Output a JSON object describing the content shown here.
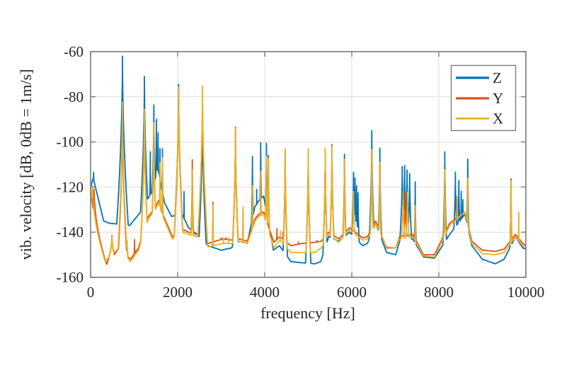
{
  "figure": {
    "background": "#ffffff",
    "frame_color": "#7b7b7b",
    "grid_color": "#dcdcdc"
  },
  "chart_data": {
    "type": "line",
    "title": "",
    "xlabel": "frequency [Hz]",
    "ylabel": "vib. velocity [dB, 0dB = 1m/s]",
    "xlim": [
      0,
      10000
    ],
    "ylim": [
      -160,
      -60
    ],
    "xticks": [
      0,
      2000,
      4000,
      6000,
      8000,
      10000
    ],
    "yticks": [
      -60,
      -80,
      -100,
      -120,
      -140,
      -160
    ],
    "grid": true,
    "legend_position": "top-right",
    "legend_labels": [
      "Z",
      "Y",
      "X"
    ],
    "peak_format": "[frequency_hz, peak_level_db, optional_width_scale]",
    "baseline_format": "[frequency_hz, level_db] piecewise-linear valley floor",
    "series": [
      {
        "name": "Z",
        "color": "#0072BD",
        "peaks": [
          [
            70,
            -113.5,
            6
          ],
          [
            732,
            -62
          ],
          [
            1236,
            -71
          ],
          [
            1372,
            -104.4
          ],
          [
            1453,
            -83.6
          ],
          [
            1513,
            -90
          ],
          [
            1551,
            -96
          ],
          [
            1594,
            -103
          ],
          [
            1650,
            -103
          ],
          [
            2022,
            -74.5
          ],
          [
            2147,
            -122
          ],
          [
            2336,
            -112.5
          ],
          [
            2570,
            -86
          ],
          [
            3328,
            -93.5
          ],
          [
            3718,
            -106.5
          ],
          [
            3815,
            -121
          ],
          [
            3908,
            -100.3
          ],
          [
            4040,
            -100.6
          ],
          [
            4085,
            -106
          ],
          [
            4470,
            -104.5
          ],
          [
            5000,
            -104
          ],
          [
            5390,
            -104
          ],
          [
            5545,
            -101.2
          ],
          [
            5832,
            -105.5
          ],
          [
            6040,
            -113.5,
            2
          ],
          [
            6075,
            -116,
            2
          ],
          [
            6110,
            -119.5,
            2
          ],
          [
            6145,
            -122.5,
            2
          ],
          [
            6460,
            -95
          ],
          [
            6646,
            -102.8
          ],
          [
            7160,
            -111,
            2
          ],
          [
            7215,
            -110.5,
            2
          ],
          [
            7270,
            -112.5,
            2
          ],
          [
            7330,
            -114,
            2
          ],
          [
            7458,
            -117.7
          ],
          [
            8137,
            -104.4
          ],
          [
            8380,
            -113.4,
            2
          ],
          [
            8460,
            -117.1,
            2
          ],
          [
            8515,
            -121.9,
            2
          ],
          [
            8553,
            -125.6,
            2
          ],
          [
            8665,
            -107.6
          ],
          [
            9657,
            -116.4
          ]
        ],
        "baseline": [
          [
            0,
            -120
          ],
          [
            60,
            -116
          ],
          [
            300,
            -135
          ],
          [
            420,
            -136
          ],
          [
            900,
            -137
          ],
          [
            1150,
            -131
          ],
          [
            1320,
            -125
          ],
          [
            1420,
            -122
          ],
          [
            1490,
            -116
          ],
          [
            1535,
            -112
          ],
          [
            1575,
            -114
          ],
          [
            1625,
            -120
          ],
          [
            1700,
            -127
          ],
          [
            1860,
            -133
          ],
          [
            2100,
            -132
          ],
          [
            2250,
            -138
          ],
          [
            2450,
            -141
          ],
          [
            2700,
            -146
          ],
          [
            3000,
            -148
          ],
          [
            3230,
            -147
          ],
          [
            3420,
            -144
          ],
          [
            3600,
            -145
          ],
          [
            3770,
            -129
          ],
          [
            3865,
            -126
          ],
          [
            3975,
            -124
          ],
          [
            4200,
            -148
          ],
          [
            4340,
            -146
          ],
          [
            4600,
            -153
          ],
          [
            4820,
            -153.5
          ],
          [
            5160,
            -154
          ],
          [
            5290,
            -153
          ],
          [
            5470,
            -142
          ],
          [
            5700,
            -144
          ],
          [
            5950,
            -140
          ],
          [
            6250,
            -146
          ],
          [
            6360,
            -145
          ],
          [
            6550,
            -136
          ],
          [
            6800,
            -149
          ],
          [
            7010,
            -150
          ],
          [
            7100,
            -144
          ],
          [
            7400,
            -143
          ],
          [
            7650,
            -151
          ],
          [
            7900,
            -151.5
          ],
          [
            8250,
            -141
          ],
          [
            8600,
            -132
          ],
          [
            8760,
            -146
          ],
          [
            9000,
            -152
          ],
          [
            9300,
            -154
          ],
          [
            9500,
            -152
          ],
          [
            9760,
            -142
          ],
          [
            9930,
            -147
          ],
          [
            10000,
            -147.5
          ]
        ]
      },
      {
        "name": "Y",
        "color": "#D95319",
        "peaks": [
          [
            80,
            -121,
            10
          ],
          [
            490,
            -141.5,
            25
          ],
          [
            732,
            -86
          ],
          [
            836,
            -144,
            15
          ],
          [
            1010,
            -143.3,
            6
          ],
          [
            1236,
            -86
          ],
          [
            1453,
            -93
          ],
          [
            1594,
            -110
          ],
          [
            2022,
            -77
          ],
          [
            2336,
            -107.9
          ],
          [
            2570,
            -77
          ],
          [
            2810,
            -126.7
          ],
          [
            3000,
            -142.5,
            7
          ],
          [
            3110,
            -142.5,
            7
          ],
          [
            3328,
            -95
          ],
          [
            3501,
            -130
          ],
          [
            3718,
            -120
          ],
          [
            3908,
            -114
          ],
          [
            3978,
            -137,
            6
          ],
          [
            4040,
            -107
          ],
          [
            4280,
            -138.4,
            7
          ],
          [
            4420,
            -140,
            7
          ],
          [
            4470,
            -104
          ],
          [
            4771,
            -144.3,
            8
          ],
          [
            5000,
            -104
          ],
          [
            5200,
            -143.7,
            8
          ],
          [
            5390,
            -104
          ],
          [
            5545,
            -101.6
          ],
          [
            5832,
            -107.8
          ],
          [
            6300,
            -143.5,
            8
          ],
          [
            6460,
            -104
          ],
          [
            6646,
            -110
          ],
          [
            7230,
            -122,
            3
          ],
          [
            7458,
            -128
          ],
          [
            8137,
            -113
          ],
          [
            8420,
            -125,
            2
          ],
          [
            8665,
            -117.3
          ],
          [
            9657,
            -117
          ],
          [
            9836,
            -131.5
          ]
        ],
        "baseline": [
          [
            0,
            -121
          ],
          [
            250,
            -158.5
          ],
          [
            650,
            -147
          ],
          [
            917,
            -152
          ],
          [
            1100,
            -147
          ],
          [
            1330,
            -133
          ],
          [
            1490,
            -129
          ],
          [
            1560,
            -126
          ],
          [
            1680,
            -133
          ],
          [
            1880,
            -142
          ],
          [
            2150,
            -139
          ],
          [
            2250,
            -140
          ],
          [
            2450,
            -141
          ],
          [
            2700,
            -145
          ],
          [
            3040,
            -143
          ],
          [
            3230,
            -143.5
          ],
          [
            3420,
            -143
          ],
          [
            3600,
            -144
          ],
          [
            3780,
            -134
          ],
          [
            3865,
            -132
          ],
          [
            3975,
            -131
          ],
          [
            4210,
            -144.5
          ],
          [
            4350,
            -142
          ],
          [
            4600,
            -146
          ],
          [
            4850,
            -145
          ],
          [
            5150,
            -144.5
          ],
          [
            5300,
            -144
          ],
          [
            5470,
            -140
          ],
          [
            5700,
            -143
          ],
          [
            5950,
            -138
          ],
          [
            6250,
            -142.5
          ],
          [
            6360,
            -142
          ],
          [
            6550,
            -135
          ],
          [
            6800,
            -147
          ],
          [
            7010,
            -147
          ],
          [
            7100,
            -142
          ],
          [
            7400,
            -141
          ],
          [
            7650,
            -150
          ],
          [
            7900,
            -150
          ],
          [
            8250,
            -136
          ],
          [
            8600,
            -131
          ],
          [
            8760,
            -144
          ],
          [
            9000,
            -148
          ],
          [
            9300,
            -148.5
          ],
          [
            9500,
            -147.5
          ],
          [
            9760,
            -141
          ],
          [
            9930,
            -145
          ],
          [
            10000,
            -146
          ]
        ]
      },
      {
        "name": "X",
        "color": "#EDB120",
        "peaks": [
          [
            45,
            -119.5,
            10
          ],
          [
            490,
            -142,
            25
          ],
          [
            732,
            -82.5
          ],
          [
            836,
            -144.5,
            15
          ],
          [
            1236,
            -85.5
          ],
          [
            1453,
            -91.6
          ],
          [
            1594,
            -109.2
          ],
          [
            1650,
            -107
          ],
          [
            2022,
            -75.8
          ],
          [
            2336,
            -112.4
          ],
          [
            2570,
            -75.2
          ],
          [
            2810,
            -128
          ],
          [
            3050,
            -142.5,
            6
          ],
          [
            3170,
            -142.5,
            6
          ],
          [
            3328,
            -94
          ],
          [
            3501,
            -128.8
          ],
          [
            3718,
            -119.5
          ],
          [
            3908,
            -113
          ],
          [
            4040,
            -106.5
          ],
          [
            4085,
            -107.5
          ],
          [
            4360,
            -139.5,
            6
          ],
          [
            4470,
            -103
          ],
          [
            5000,
            -103
          ],
          [
            5390,
            -102.8
          ],
          [
            5545,
            -102
          ],
          [
            5832,
            -107.8
          ],
          [
            6040,
            -122,
            3
          ],
          [
            6460,
            -103.4
          ],
          [
            6646,
            -109.2
          ],
          [
            7180,
            -121.9,
            3
          ],
          [
            7280,
            -122.3,
            3
          ],
          [
            7458,
            -128.3
          ],
          [
            8137,
            -112.3
          ],
          [
            8420,
            -124.3,
            3
          ],
          [
            8665,
            -116.1
          ],
          [
            9657,
            -117.3
          ],
          [
            9836,
            -131.1
          ]
        ],
        "baseline": [
          [
            0,
            -120
          ],
          [
            240,
            -154.5
          ],
          [
            650,
            -147
          ],
          [
            917,
            -153
          ],
          [
            1100,
            -148
          ],
          [
            1330,
            -134
          ],
          [
            1490,
            -130
          ],
          [
            1560,
            -127
          ],
          [
            1680,
            -134
          ],
          [
            1880,
            -143
          ],
          [
            2150,
            -140
          ],
          [
            2250,
            -141
          ],
          [
            2450,
            -142
          ],
          [
            2700,
            -146.5
          ],
          [
            3040,
            -145
          ],
          [
            3230,
            -145
          ],
          [
            3420,
            -144
          ],
          [
            3600,
            -145
          ],
          [
            3780,
            -135
          ],
          [
            3865,
            -133
          ],
          [
            3975,
            -132
          ],
          [
            4210,
            -147
          ],
          [
            4350,
            -143.5
          ],
          [
            4600,
            -149
          ],
          [
            4850,
            -149
          ],
          [
            5150,
            -149
          ],
          [
            5300,
            -147
          ],
          [
            5470,
            -141
          ],
          [
            5700,
            -144.5
          ],
          [
            5950,
            -139
          ],
          [
            6250,
            -143.5
          ],
          [
            6360,
            -143
          ],
          [
            6550,
            -136
          ],
          [
            6800,
            -146.5
          ],
          [
            7010,
            -147
          ],
          [
            7100,
            -143
          ],
          [
            7400,
            -142
          ],
          [
            7650,
            -150.5
          ],
          [
            7900,
            -151
          ],
          [
            8250,
            -137
          ],
          [
            8600,
            -131
          ],
          [
            8760,
            -145
          ],
          [
            9000,
            -149.5
          ],
          [
            9300,
            -150
          ],
          [
            9500,
            -149
          ],
          [
            9760,
            -142
          ],
          [
            9930,
            -146
          ],
          [
            10000,
            -147
          ]
        ]
      }
    ]
  }
}
